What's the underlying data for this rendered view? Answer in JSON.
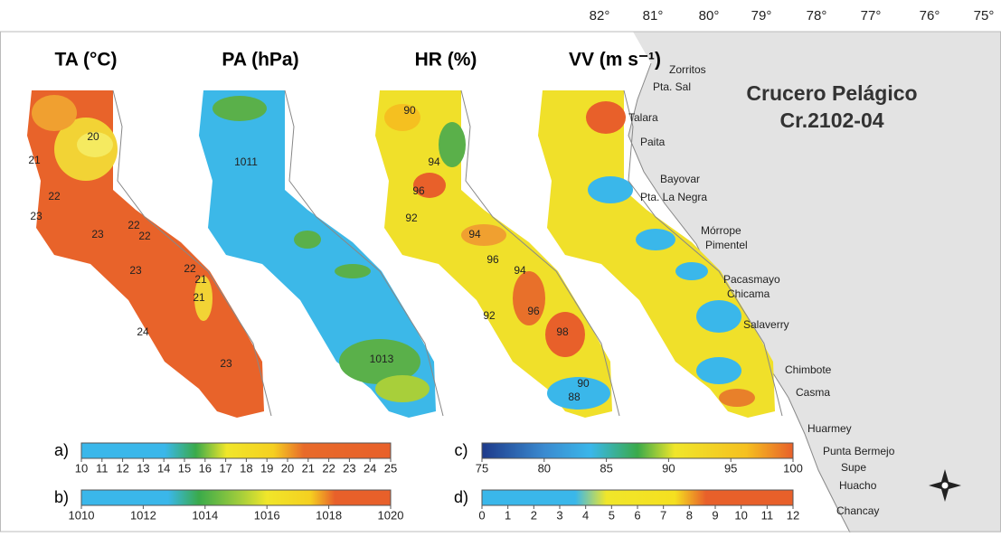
{
  "title": {
    "line1": "Crucero Pelágico",
    "line2": "Cr.2102-04"
  },
  "longitude_labels": [
    "82°",
    "81°",
    "80°",
    "79°",
    "78°",
    "77°",
    "76°",
    "75°"
  ],
  "panels": [
    {
      "title": "TA (°C)",
      "contour_labels": [
        "20",
        "21",
        "22",
        "23",
        "23",
        "22",
        "22",
        "23",
        "22",
        "21",
        "21",
        "24",
        "23"
      ]
    },
    {
      "title": "PA (hPa)",
      "contour_labels": [
        "1011",
        "1013"
      ]
    },
    {
      "title": "HR (%)",
      "contour_labels": [
        "90",
        "94",
        "96",
        "92",
        "94",
        "96",
        "94",
        "92",
        "96",
        "98",
        "90",
        "88"
      ]
    },
    {
      "title": "VV (m s⁻¹)",
      "contour_labels": []
    }
  ],
  "places": [
    "Zorritos",
    "Pta. Sal",
    "Talara",
    "Paita",
    "Bayovar",
    "Pta. La Negra",
    "Mórrope",
    "Pimentel",
    "Pacasmayo",
    "Chicama",
    "Salaverry",
    "Chimbote",
    "Casma",
    "Huarmey",
    "Punta Bermejo",
    "Supe",
    "Huacho",
    "Chancay"
  ],
  "colorbars": [
    {
      "label": "a)",
      "lim": [
        10,
        25
      ],
      "ticks": [
        10,
        11,
        12,
        13,
        14,
        15,
        16,
        17,
        18,
        19,
        20,
        21,
        22,
        23,
        24,
        25
      ]
    },
    {
      "label": "b)",
      "lim": [
        1010,
        1020
      ],
      "ticks": [
        1010,
        1012,
        1014,
        1016,
        1018,
        1020
      ]
    },
    {
      "label": "c)",
      "lim": [
        75,
        100
      ],
      "ticks": [
        75,
        80,
        85,
        90,
        95,
        100
      ]
    },
    {
      "label": "d)",
      "lim": [
        0,
        12
      ],
      "ticks": [
        0,
        1,
        2,
        3,
        4,
        5,
        6,
        7,
        8,
        9,
        10,
        11,
        12
      ]
    }
  ]
}
